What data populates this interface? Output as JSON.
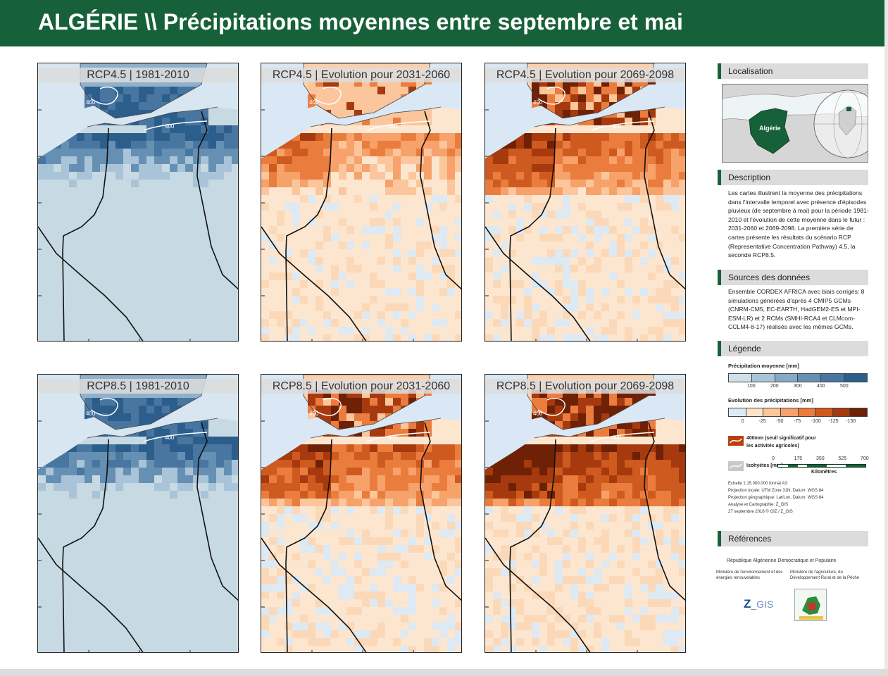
{
  "banner": {
    "title": "ALGÉRIE \\\\ Précipitations moyennes entre septembre et mai",
    "color": "#17613a"
  },
  "maps": [
    {
      "title": "RCP4.5 | 1981-2010",
      "mode": "blue",
      "intensity": 1,
      "isohyet": "400"
    },
    {
      "title": "RCP4.5 | Evolution pour 2031-2060",
      "mode": "orange",
      "intensity": 1,
      "isohyet": "400"
    },
    {
      "title": "RCP4.5 | Evolution pour 2069-2098",
      "mode": "orange",
      "intensity": 2,
      "isohyet": "400"
    },
    {
      "title": "RCP8.5 | 1981-2010",
      "mode": "blue",
      "intensity": 1,
      "isohyet": "400"
    },
    {
      "title": "RCP8.5 | Evolution pour 2031-2060",
      "mode": "orange",
      "intensity": 2,
      "isohyet": "400"
    },
    {
      "title": "RCP8.5 | Evolution pour 2069-2098",
      "mode": "orange",
      "intensity": 3,
      "isohyet": "400"
    }
  ],
  "sidebar": {
    "localisation": {
      "heading": "Localisation",
      "country_label": "Algérie"
    },
    "description": {
      "heading": "Description",
      "text": "Les cartes illustrent la moyenne des précipitations dans l'intervalle temporel avec présence d'épisodes pluvieux (de septembre à mai) pour la période 1981-2010 et l'évolution de cette moyenne dans le futur : 2031-2060 et 2069-2098. La première série de cartes présente les résultats du scénario RCP (Representative Concentration Pathway) 4.5, la seconde RCP8.5."
    },
    "sources": {
      "heading": "Sources des données",
      "text": "Ensemble CORDEX AFRICA avec biais corrigés: 8 simulations générées d'après 4 CMIP5 GCMs (CNRM-CM5, EC-EARTH, HadGEM2-ES et MPI-ESM-LR) et 2 RCMs (SMHI-RCA4 et CLMcom-CCLM4-8-17) réalisés avec les mêmes GCMs."
    },
    "legend": {
      "heading": "Légende",
      "precip_title": "Précipitation moyenne [mm]",
      "precip_colors": [
        "#cfe0ea",
        "#a9c4d8",
        "#86a9c5",
        "#6690b3",
        "#4876a0",
        "#2c5e8c"
      ],
      "precip_ticks": [
        "100",
        "200",
        "300",
        "400",
        "500"
      ],
      "evol_title": "Evolution des précipitations [mm]",
      "evol_colors": [
        "#dde9f3",
        "#fde3c8",
        "#fbc69b",
        "#f6a26a",
        "#ea7d3e",
        "#cf5a1f",
        "#a63a0e",
        "#6e2106"
      ],
      "evol_ticks": [
        "0",
        "-25",
        "-50",
        "-75",
        "-100",
        "-125",
        "-150"
      ],
      "threshold_label": "400mm (seuil significatif pour les activités agricoles)",
      "isohyet_label": "Isohyètes [mm]",
      "scale_ticks": [
        "0",
        "175",
        "350",
        "525",
        "700"
      ],
      "scale_unit": "Kilomètres",
      "notes": [
        "Echelle 1:15.000.000 format A3",
        "Projection locale: UTM Zone 31N, Datum: WGS 84",
        "Projection géographique: Lat/Lon, Datum: WGS 84",
        "Analyse et Cartographie: Z_GIS",
        "27 septembre 2016 © GIZ / Z_GIS"
      ]
    },
    "references": {
      "heading": "Références",
      "republic": "République Algérienne Démocratique et Populaire",
      "ministry1": "Ministère de l'environnement et des énergies renouvelables",
      "ministry2": "Ministère de l'agriculture, du Développement Rural et de la Pêche",
      "logo1": "Z_GIS",
      "logo2": "ENCDDD"
    }
  }
}
